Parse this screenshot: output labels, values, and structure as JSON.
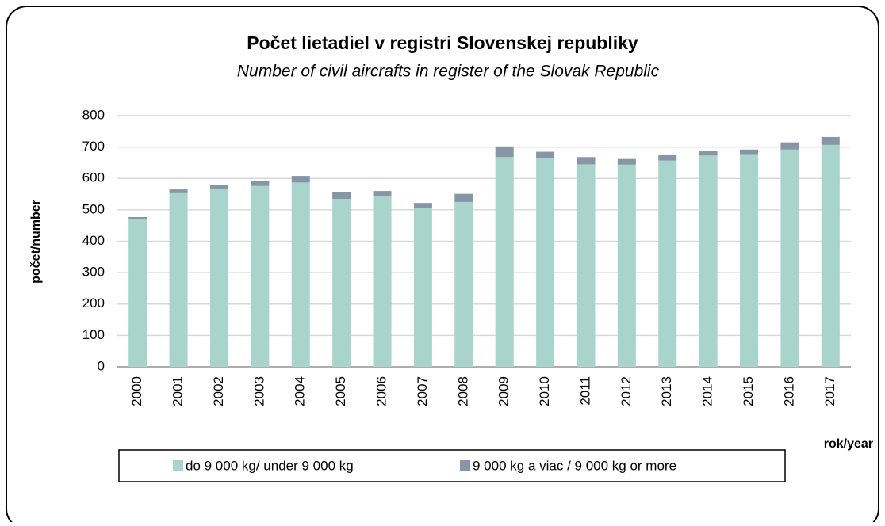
{
  "chart_data": {
    "type": "bar",
    "stacked": true,
    "title": "Počet lietadiel v registri Slovenskej republiky",
    "subtitle": "Number of civil aircrafts in register of the Slovak Republic",
    "y_label": "počet/number",
    "x_label": "rok/year",
    "categories": [
      "2000",
      "2001",
      "2002",
      "2003",
      "2004",
      "2005",
      "2006",
      "2007",
      "2008",
      "2009",
      "2010",
      "2011",
      "2012",
      "2013",
      "2014",
      "2015",
      "2016",
      "2017"
    ],
    "series": [
      {
        "name": "do 9 000 kg/ under 9 000 kg",
        "color": "#a9d4cb",
        "values": [
          470,
          553,
          565,
          576,
          587,
          535,
          543,
          507,
          525,
          668,
          664,
          645,
          644,
          657,
          673,
          675,
          692,
          707
        ]
      },
      {
        "name": "9 000 kg a viac / 9 000 kg or more",
        "color": "#8795a6",
        "values": [
          7,
          12,
          15,
          16,
          21,
          22,
          17,
          15,
          26,
          34,
          21,
          23,
          18,
          17,
          15,
          17,
          23,
          25
        ]
      }
    ],
    "ylim": [
      0,
      800
    ],
    "yticks": [
      0,
      100,
      200,
      300,
      400,
      500,
      600,
      700,
      800
    ],
    "grid": true
  }
}
